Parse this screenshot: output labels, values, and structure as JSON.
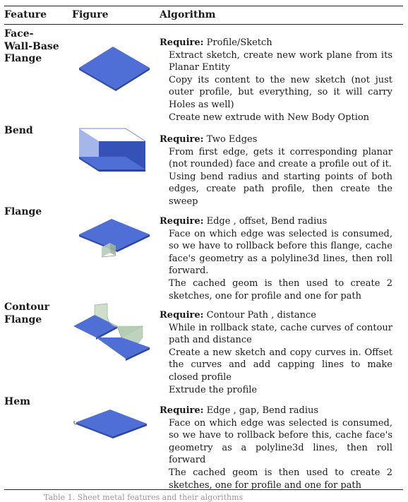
{
  "table": {
    "headers": {
      "feature": "Feature",
      "figure": "Figure",
      "algorithm": "Algorithm"
    },
    "rows": [
      {
        "feature": "Face-Wall-Base Flange",
        "feature_lines": [
          "Face-",
          "Wall-Base",
          "Flange"
        ],
        "figure_icon": "flat-plate-3d",
        "require_label": "Require:",
        "require": "Profile/Sketch",
        "steps": [
          "Extract sketch, create new work plane from its Planar Entity",
          "Copy its content to the new sketch (not just outer profile, but everything, so it will carry Holes as well)",
          "Create new extrude with New Body Option"
        ]
      },
      {
        "feature": "Bend",
        "feature_lines": [
          "Bend"
        ],
        "figure_icon": "bent-plate-3d",
        "require_label": "Require:",
        "require": "Two Edges",
        "steps": [
          "From first edge, gets it corresponding planar (not rounded) face and create a profile out of it.",
          "Using bend radius and starting points of both edges, create path profile, then create the sweep"
        ]
      },
      {
        "feature": "Flange",
        "feature_lines": [
          "Flange"
        ],
        "figure_icon": "flanged-plate-3d",
        "require_label": "Require:",
        "require": "Edge , offset, Bend radius",
        "steps": [
          "Face on which edge was selected is consumed, so we have to rollback before this flange, cache face's geometry as a polyline3d lines, then roll forward.",
          "The cached geom is then used to create 2 sketches, one for profile and one for path"
        ]
      },
      {
        "feature": "Contour Flange",
        "feature_lines": [
          "Contour",
          "Flange"
        ],
        "figure_icon": "contour-flange-3d",
        "require_label": "Require:",
        "require": "Contour Path , distance",
        "steps": [
          "While in rollback state, cache curves of contour path and distance",
          "Create a new sketch and copy curves in. Offset the curves and add capping lines to make closed profile",
          "Extrude the profile"
        ]
      },
      {
        "feature": "Hem",
        "feature_lines": [
          "Hem"
        ],
        "figure_icon": "hemmed-plate-3d",
        "require_label": "Require:",
        "require": "Edge , gap, Bend radius",
        "steps": [
          "Face on which edge was selected is consumed, so we have to rollback before this, cache face's geometry as a polyline3d lines, then roll forward",
          "The cached geom is then used to create 2 sketches, one for profile and one for path"
        ]
      }
    ],
    "caption": "Table 1. Sheet metal features and their algorithms"
  },
  "colors": {
    "plate_top": "#4f6ed6",
    "plate_side": "#3d5bc0",
    "bend_face": "#2445b5",
    "green_face": "#c8dcc6",
    "rule": "#222222"
  }
}
